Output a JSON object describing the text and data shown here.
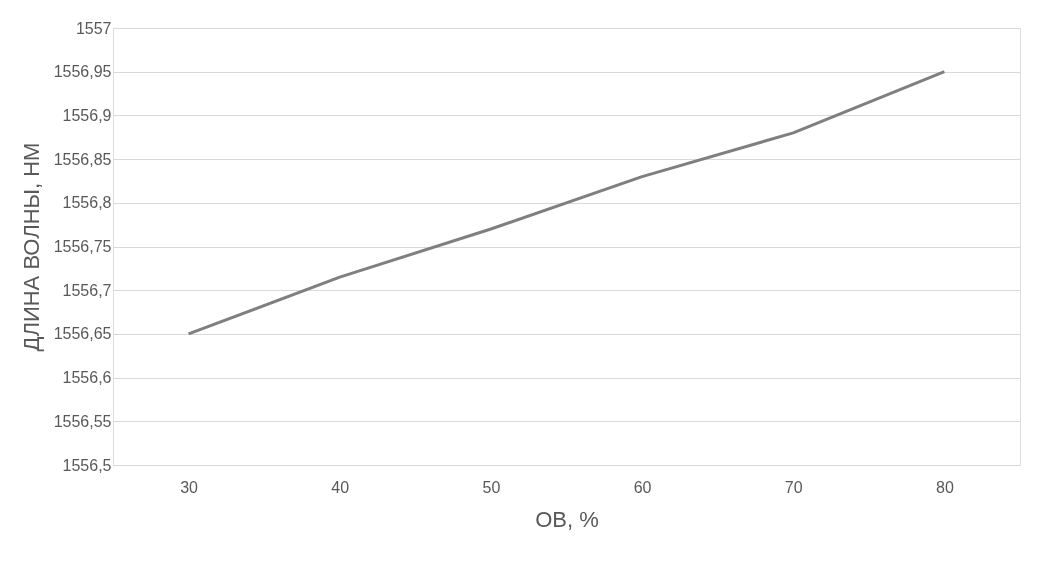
{
  "chart_data": {
    "type": "line",
    "xlabel": "ОВ, %",
    "ylabel": "ДЛИНА ВОЛНЫ, НМ",
    "categories": [
      "30",
      "40",
      "50",
      "60",
      "70",
      "80"
    ],
    "series": [
      {
        "color": "#7f7f7f",
        "values": [
          1556.65,
          1556.715,
          1556.77,
          1556.83,
          1556.88,
          1556.95
        ]
      }
    ],
    "ylim": [
      1556.5,
      1557
    ],
    "yticks": [
      {
        "value": 1556.5,
        "label": "1556,5"
      },
      {
        "value": 1556.55,
        "label": "1556,55"
      },
      {
        "value": 1556.6,
        "label": "1556,6"
      },
      {
        "value": 1556.65,
        "label": "1556,65"
      },
      {
        "value": 1556.7,
        "label": "1556,7"
      },
      {
        "value": 1556.75,
        "label": "1556,75"
      },
      {
        "value": 1556.8,
        "label": "1556,8"
      },
      {
        "value": 1556.85,
        "label": "1556,85"
      },
      {
        "value": 1556.9,
        "label": "1556,9"
      },
      {
        "value": 1556.95,
        "label": "1556,95"
      },
      {
        "value": 1557,
        "label": "1557"
      }
    ],
    "grid": "y",
    "marker": "none",
    "line_style": "solid"
  }
}
